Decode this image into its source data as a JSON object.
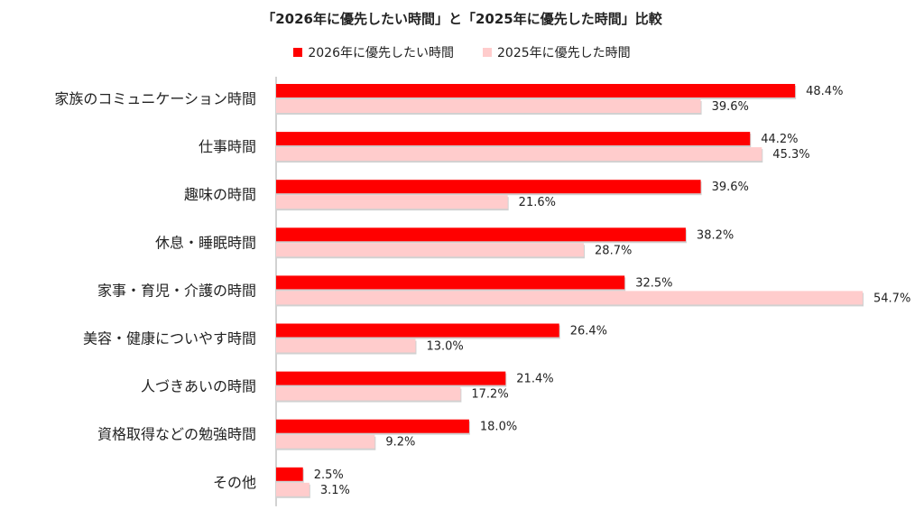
{
  "chart_data": {
    "type": "bar",
    "orientation": "horizontal",
    "title": "「2026年に優先したい時間」と「2025年に優先した時間」比較",
    "categories": [
      "家族のコミュニケーション時間",
      "仕事時間",
      "趣味の時間",
      "休息・睡眠時間",
      "家事・育児・介護の時間",
      "美容・健康についやす時間",
      "人づきあいの時間",
      "資格取得などの勉強時間",
      "その他"
    ],
    "series": [
      {
        "name": "2026年に優先したい時間",
        "color": "#ff0000",
        "values": [
          48.4,
          44.2,
          39.6,
          38.2,
          32.5,
          26.4,
          21.4,
          18.0,
          2.5
        ],
        "labels": [
          "48.4%",
          "44.2%",
          "39.6%",
          "38.2%",
          "32.5%",
          "26.4%",
          "21.4%",
          "18.0%",
          "2.5%"
        ]
      },
      {
        "name": "2025年に優先した時間",
        "color": "#ffcccc",
        "values": [
          39.6,
          45.3,
          21.6,
          28.7,
          54.7,
          13.0,
          17.2,
          9.2,
          3.1
        ],
        "labels": [
          "39.6%",
          "45.3%",
          "21.6%",
          "28.7%",
          "54.7%",
          "13.0%",
          "17.2%",
          "9.2%",
          "3.1%"
        ]
      }
    ],
    "xlim": [
      0,
      54.7
    ],
    "legend_position": "top",
    "grid": false
  }
}
